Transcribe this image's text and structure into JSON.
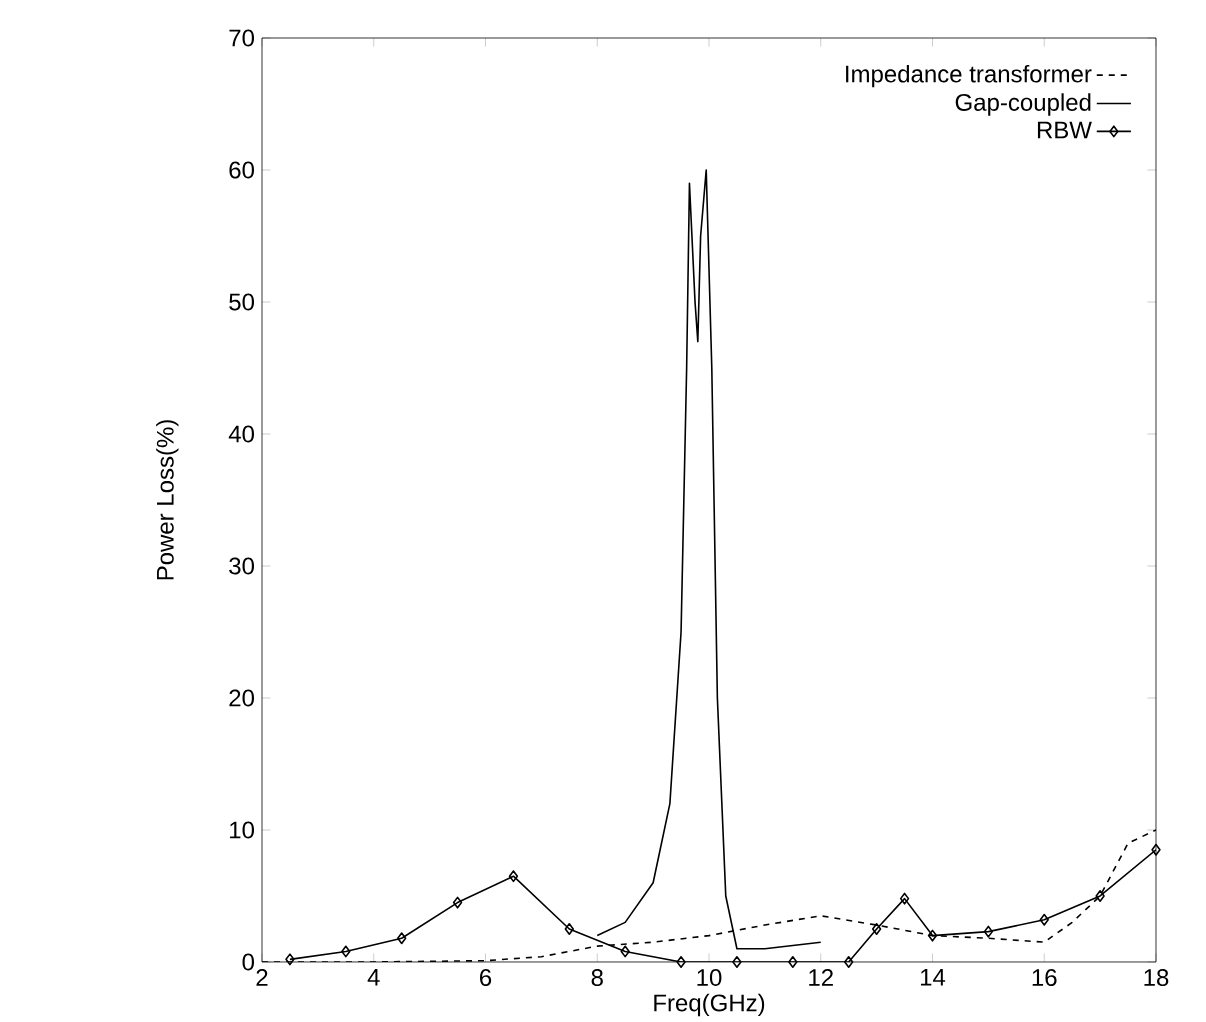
{
  "chart_data": {
    "type": "line",
    "xlabel": "Freq(GHz)",
    "ylabel": "Power Loss(%)",
    "xlim": [
      2,
      18
    ],
    "ylim": [
      0,
      70
    ],
    "xticks": [
      2,
      4,
      6,
      8,
      10,
      12,
      14,
      16,
      18
    ],
    "yticks": [
      0,
      10,
      20,
      30,
      40,
      50,
      60,
      70
    ],
    "grid": false,
    "legend": "top right",
    "series": [
      {
        "name": "Impedance transformer",
        "color": "#000000",
        "line_style": "dashed",
        "marker": "none",
        "x": [
          2,
          4,
          6,
          7,
          8,
          9,
          10,
          11,
          12,
          13,
          14,
          15,
          16,
          16.5,
          17,
          17.5,
          18
        ],
        "values": [
          0,
          0,
          0.1,
          0.4,
          1.2,
          1.5,
          2,
          2.8,
          3.5,
          2.8,
          2,
          1.8,
          1.5,
          3,
          5,
          9,
          10
        ]
      },
      {
        "name": "Gap-coupled",
        "color": "#000000",
        "line_style": "solid",
        "marker": "none",
        "x": [
          8,
          8.5,
          9,
          9.3,
          9.5,
          9.6,
          9.65,
          9.75,
          9.8,
          9.85,
          9.95,
          10.05,
          10.15,
          10.3,
          10.5,
          11,
          12
        ],
        "values": [
          2,
          3,
          6,
          12,
          25,
          45,
          59,
          50,
          47,
          55,
          60,
          45,
          20,
          5,
          1,
          1,
          1.5
        ]
      },
      {
        "name": "RBW",
        "color": "#000000",
        "line_style": "solid",
        "marker": "diamond",
        "x": [
          2.5,
          3.5,
          4.5,
          5.5,
          6.5,
          7.5,
          8.5,
          9.5,
          10.5,
          11.5,
          12.5,
          13,
          13.5,
          14,
          15,
          16,
          17,
          18
        ],
        "values": [
          0.2,
          0.8,
          1.8,
          4.5,
          6.5,
          2.5,
          0.8,
          0,
          0,
          0,
          0,
          2.5,
          4.8,
          2,
          2.3,
          3.2,
          5,
          8.5
        ]
      }
    ]
  }
}
